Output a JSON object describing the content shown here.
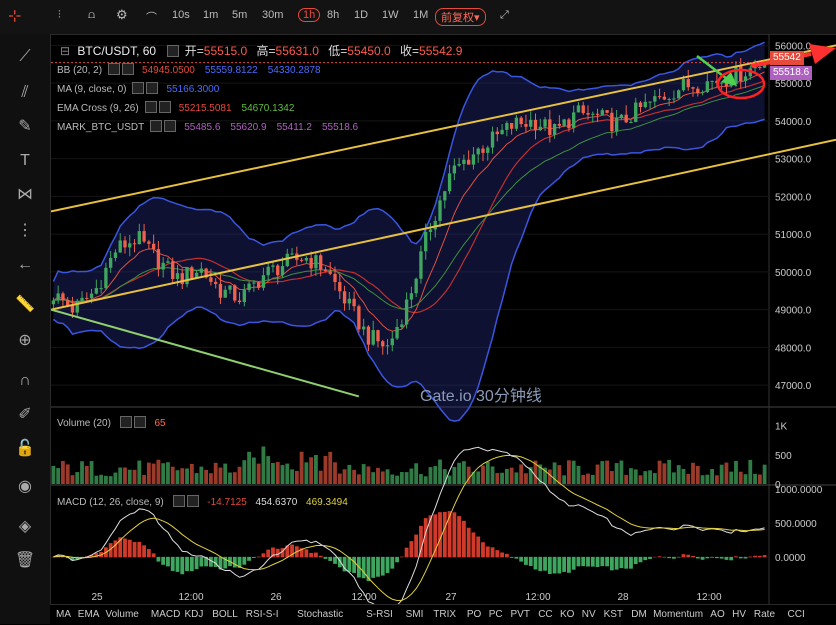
{
  "toolbar": {
    "intervals": [
      "10s",
      "1m",
      "5m",
      "30m",
      "1h",
      "8h",
      "1D",
      "1W",
      "1M"
    ],
    "active_interval": "1h",
    "adjust_label": "前复权▾"
  },
  "header": {
    "symbol": "BTC/USDT, 60",
    "open_label": "开=",
    "open": "55515.0",
    "high_label": "高=",
    "high": "55631.0",
    "low_label": "低=",
    "low": "55450.0",
    "close_label": "收=",
    "close": "55542.9"
  },
  "legends": [
    {
      "name": "BB (20, 2)",
      "values": [
        "54945.0500",
        "55559.8122",
        "54330.2878"
      ],
      "colors": [
        "#e64a3a",
        "#4a6cff",
        "#4a6cff"
      ]
    },
    {
      "name": "MA (9, close, 0)",
      "values": [
        "55166.3000"
      ],
      "colors": [
        "#4a6cff"
      ]
    },
    {
      "name": "EMA Cross (9, 26)",
      "values": [
        "55215.5081",
        "54670.1342"
      ],
      "colors": [
        "#e64a3a",
        "#5fbf3f"
      ]
    },
    {
      "name": "MARK_BTC_USDT",
      "values": [
        "55485.6",
        "55620.9",
        "55411.2",
        "55518.6"
      ],
      "colors": [
        "#b060c0",
        "#b060c0",
        "#b060c0",
        "#b060c0"
      ]
    }
  ],
  "watermark": "Gate.io 30分钟线",
  "price_tags": {
    "last": "55542",
    "mark": "55518.6"
  },
  "volume_legend": {
    "name": "Volume (20)",
    "value": "65"
  },
  "macd_legend": {
    "name": "MACD (12, 26, close, 9)",
    "values": [
      "-14.7125",
      "454.6370",
      "469.3494"
    ],
    "colors": [
      "#e64a3a",
      "#dddddd",
      "#e0d040"
    ]
  },
  "bottom_indicators": [
    "MA",
    "EMA",
    "Volume",
    "MACD",
    "KDJ",
    "BOLL",
    "RSI-S-I",
    "Stochastic",
    "S-RSI",
    "SMI",
    "TRIX",
    "PO",
    "PC",
    "PVT",
    "CC",
    "KO",
    "NV",
    "KST",
    "DM",
    "Momentum",
    "AO",
    "HV",
    "Rate",
    "CCI"
  ],
  "chart_data": [
    {
      "type": "candlestick",
      "x_ticks": [
        "25",
        "12:00",
        "26",
        "12:00",
        "27",
        "12:00",
        "28",
        "12:00"
      ],
      "y_ticks": [
        47000,
        48000,
        49000,
        50000,
        51000,
        52000,
        53000,
        54000,
        55000,
        56000
      ],
      "ylim": [
        46500,
        56300
      ],
      "close_path": [
        49400,
        49000,
        49500,
        50600,
        50900,
        50300,
        49800,
        50100,
        49500,
        49300,
        49900,
        50200,
        50400,
        50100,
        49200,
        48300,
        48000,
        49300,
        51200,
        52600,
        53100,
        53500,
        53900,
        54000,
        53700,
        54200,
        54100,
        53900,
        54300,
        54600,
        54900,
        55000,
        55100,
        55300,
        55542.9
      ],
      "channel_upper": [
        [
          0,
          51600
        ],
        [
          1,
          56000
        ]
      ],
      "channel_lower": [
        [
          0,
          49000
        ],
        [
          1,
          53500
        ]
      ],
      "support_line": [
        [
          0,
          49000
        ],
        [
          0.43,
          46700
        ]
      ]
    },
    {
      "type": "bar",
      "name": "Volume (20)",
      "y_ticks": [
        "1K",
        "500",
        "0"
      ],
      "ylim": [
        0,
        1200
      ]
    },
    {
      "type": "histogram+line",
      "name": "MACD (12, 26, close, 9)",
      "y_ticks": [
        "1000.0000",
        "500.0000",
        "0.0000"
      ],
      "ylim": [
        -400,
        1000
      ]
    }
  ]
}
